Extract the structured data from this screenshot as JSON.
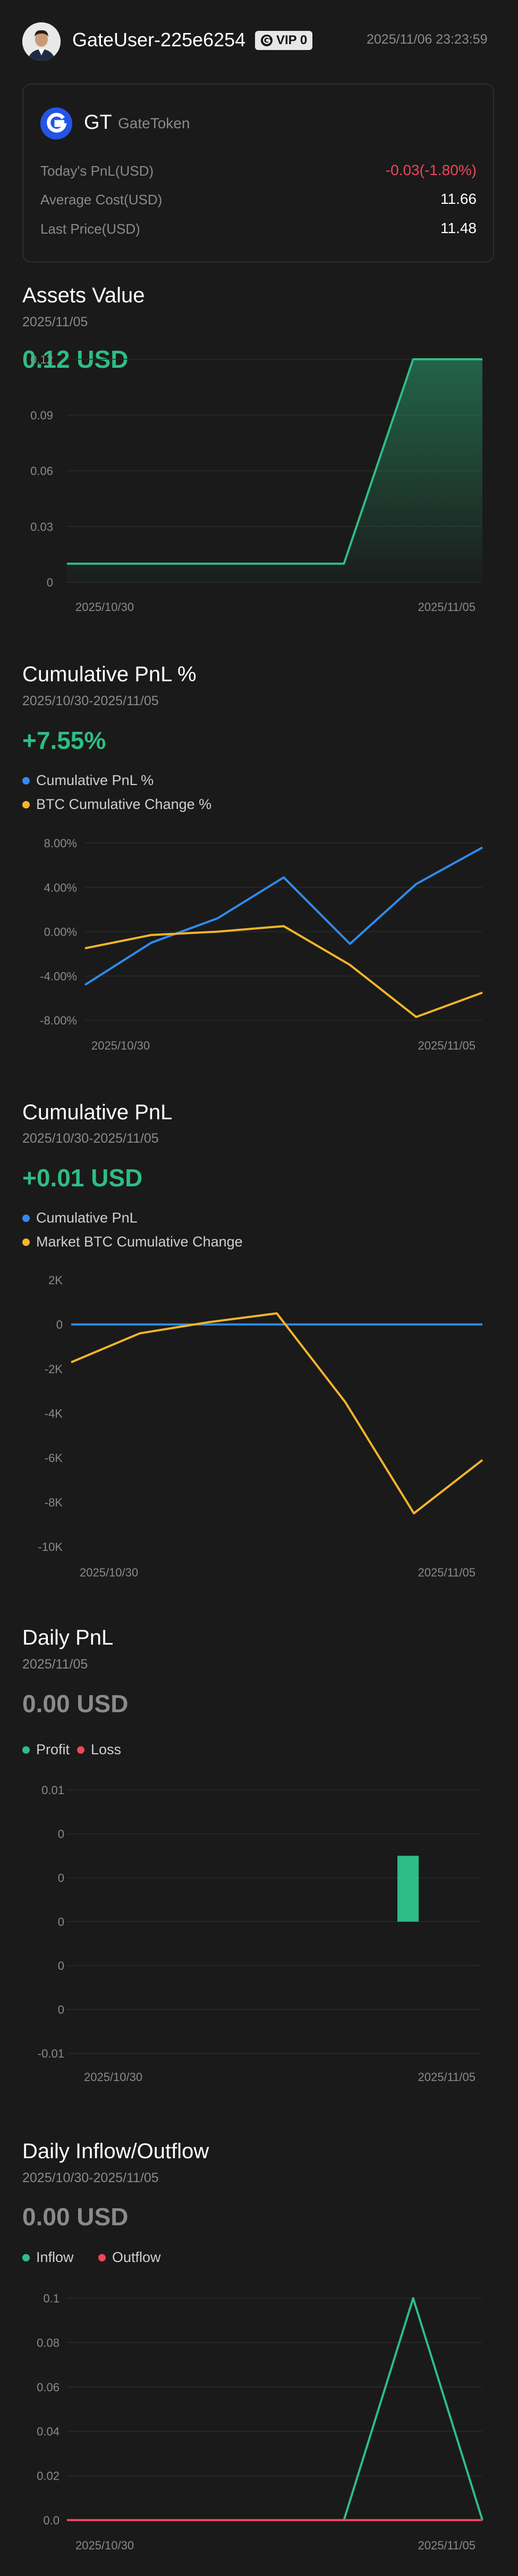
{
  "header": {
    "username": "GateUser-225e6254",
    "vip_label": "VIP 0",
    "timestamp": "2025/11/06 23:23:59"
  },
  "token": {
    "symbol": "GT",
    "name": "GateToken",
    "rows": [
      {
        "label": "Today's PnL(USD)",
        "value": "-0.03(-1.80%)",
        "color": "#f0455a"
      },
      {
        "label": "Average Cost(USD)",
        "value": "11.66",
        "color": "#ffffff"
      },
      {
        "label": "Last Price(USD)",
        "value": "11.48",
        "color": "#ffffff"
      }
    ]
  },
  "assets_value": {
    "title": "Assets Value",
    "date": "2025/11/05",
    "value": "0.12 USD"
  },
  "cumulative_pnl_pct": {
    "title": "Cumulative PnL %",
    "date": "2025/10/30-2025/11/05",
    "value": "+7.55%",
    "legend": [
      "Cumulative PnL %",
      "BTC Cumulative Change %"
    ]
  },
  "cumulative_pnl": {
    "title": "Cumulative PnL",
    "date": "2025/10/30-2025/11/05",
    "value": "+0.01 USD",
    "legend": [
      "Cumulative PnL",
      "Market BTC Cumulative Change"
    ]
  },
  "daily_pnl": {
    "title": "Daily PnL",
    "date": "2025/11/05",
    "value": "0.00 USD",
    "legend": [
      "Profit",
      "Loss"
    ]
  },
  "daily_flow": {
    "title": "Daily Inflow/Outflow",
    "date": "2025/10/30-2025/11/05",
    "value": "0.00 USD",
    "legend": [
      "Inflow",
      "Outflow"
    ]
  },
  "colors": {
    "green": "#2ebd85",
    "red": "#f0455a",
    "blue": "#2f8cf0",
    "yellow": "#f5b52a"
  },
  "chart_data": [
    {
      "type": "area",
      "title": "",
      "x": [
        "2025/10/30",
        "2025/10/31",
        "2025/11/01",
        "2025/11/02",
        "2025/11/03",
        "2025/11/04",
        "2025/11/05"
      ],
      "xticks": [
        "2025/10/30",
        "2025/11/05"
      ],
      "yticks": [
        "0",
        "0.03",
        "0.06",
        "0.09",
        "0.12"
      ],
      "ylim": [
        0,
        0.12
      ],
      "series": [
        {
          "values": [
            0.01,
            0.01,
            0.01,
            0.01,
            0.01,
            0.12,
            0.12
          ],
          "color": "#2ebd85"
        }
      ]
    },
    {
      "type": "line",
      "x": [
        "2025/10/30",
        "2025/10/31",
        "2025/11/01",
        "2025/11/02",
        "2025/11/03",
        "2025/11/04",
        "2025/11/05"
      ],
      "xticks": [
        "2025/10/30",
        "2025/11/05"
      ],
      "yticks": [
        "-8.00%",
        "-4.00%",
        "0.00%",
        "4.00%",
        "8.00%"
      ],
      "ylim": [
        -8,
        8
      ],
      "series": [
        {
          "name": "Cumulative PnL %",
          "values": [
            -4.8,
            -1.0,
            1.2,
            4.9,
            -1.1,
            4.3,
            7.6
          ],
          "color": "#2f8cf0"
        },
        {
          "name": "BTC Cumulative Change %",
          "values": [
            -1.5,
            -0.3,
            0.0,
            0.5,
            -3.0,
            -7.7,
            -5.5
          ],
          "color": "#f5b52a"
        }
      ]
    },
    {
      "type": "line",
      "x": [
        "2025/10/30",
        "2025/10/31",
        "2025/11/01",
        "2025/11/02",
        "2025/11/03",
        "2025/11/04",
        "2025/11/05"
      ],
      "xticks": [
        "2025/10/30",
        "2025/11/05"
      ],
      "yticks": [
        "-10K",
        "-8K",
        "-6K",
        "-4K",
        "-2K",
        "0",
        "2K"
      ],
      "ylim": [
        -10000,
        2000
      ],
      "series": [
        {
          "name": "Cumulative PnL",
          "values": [
            0,
            0,
            0,
            0,
            0,
            0,
            0
          ],
          "color": "#2f8cf0"
        },
        {
          "name": "Market BTC Cumulative Change",
          "values": [
            -1700,
            -400,
            100,
            500,
            -3500,
            -8500,
            -6100
          ],
          "color": "#f5b52a"
        }
      ]
    },
    {
      "type": "bar",
      "x": [
        "2025/10/30",
        "2025/10/31",
        "2025/11/01",
        "2025/11/02",
        "2025/11/03",
        "2025/11/04",
        "2025/11/05"
      ],
      "xticks": [
        "2025/10/30",
        "2025/11/05"
      ],
      "yticks": [
        "-0.01",
        "0",
        "0",
        "0",
        "0",
        "0",
        "0.01"
      ],
      "ylim": [
        -0.01,
        0.01
      ],
      "series": [
        {
          "name": "Profit",
          "values": [
            0,
            0,
            0,
            0,
            0,
            0.005,
            0
          ],
          "color": "#2ebd85"
        },
        {
          "name": "Loss",
          "values": [
            0,
            0,
            0,
            0,
            0,
            0,
            0
          ],
          "color": "#f0455a"
        }
      ]
    },
    {
      "type": "line",
      "x": [
        "2025/10/30",
        "2025/10/31",
        "2025/11/01",
        "2025/11/02",
        "2025/11/03",
        "2025/11/04",
        "2025/11/05"
      ],
      "xticks": [
        "2025/10/30",
        "2025/11/05"
      ],
      "yticks": [
        "0.0",
        "0.02",
        "0.04",
        "0.06",
        "0.08",
        "0.1"
      ],
      "ylim": [
        0,
        0.1
      ],
      "series": [
        {
          "name": "Inflow",
          "values": [
            0,
            0,
            0,
            0,
            0,
            0.1,
            0
          ],
          "color": "#2ebd85"
        },
        {
          "name": "Outflow",
          "values": [
            0,
            0,
            0,
            0,
            0,
            0,
            0
          ],
          "color": "#f0455a"
        }
      ]
    }
  ]
}
